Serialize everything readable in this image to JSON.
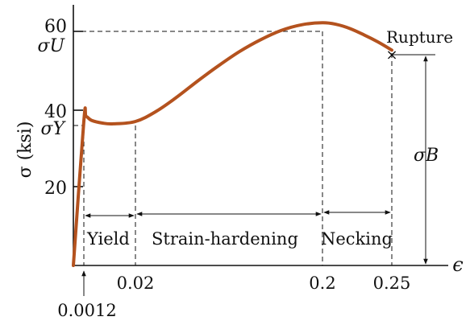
{
  "chart_data": {
    "type": "line",
    "title": "",
    "xlabel": "ϵ",
    "ylabel": "σ (ksi)",
    "y_ticks": [
      "20",
      "40",
      "60"
    ],
    "x_ticks": [
      "0.02",
      "0.2",
      "0.25"
    ],
    "x_tick_values": [
      0.02,
      0.2,
      0.25
    ],
    "ylim": [
      0,
      64
    ],
    "annotations": {
      "sigma_u": "σU",
      "sigma_y": "σY",
      "sigma_b": "σB",
      "rupture": "Rupture",
      "small_strain": "0.0012",
      "rupture_mark": "×"
    },
    "regions": [
      "Yield",
      "Strain-hardening",
      "Necking"
    ],
    "series": [
      {
        "x": [
          0,
          0.0012,
          0.002,
          0.004,
          0.008,
          0.012,
          0.02,
          0.04,
          0.06,
          0.08,
          0.1,
          0.12,
          0.14,
          0.16,
          0.18,
          0.2,
          0.21,
          0.22,
          0.23,
          0.24,
          0.25
        ],
        "y": [
          0,
          37,
          38.2,
          37.2,
          36.5,
          36.3,
          36.9,
          39.5,
          43.2,
          47.3,
          51.2,
          54.8,
          57.8,
          60.2,
          61.7,
          62.2,
          61.8,
          60.7,
          59.1,
          57.3,
          55.2
        ]
      }
    ]
  }
}
